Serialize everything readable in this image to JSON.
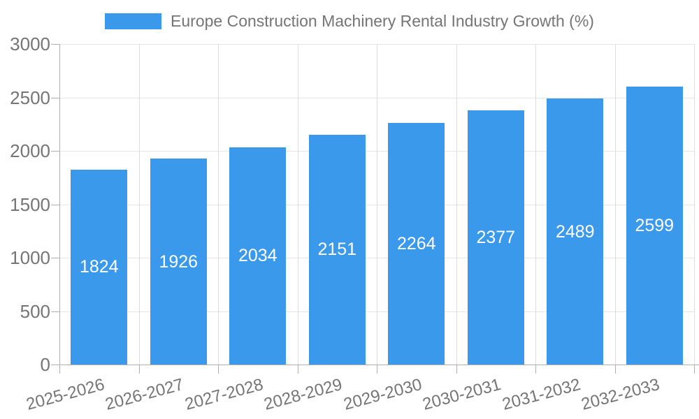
{
  "chart_data": {
    "type": "bar",
    "title": "Europe Construction Machinery Rental Industry Growth (%)",
    "legend_position": "top",
    "categories": [
      "2025-2026",
      "2026-2027",
      "2027-2028",
      "2028-2029",
      "2029-2030",
      "2030-2031",
      "2031-2032",
      "2032-2033"
    ],
    "values": [
      1824,
      1926,
      2034,
      2151,
      2264,
      2377,
      2489,
      2599
    ],
    "xlabel": "",
    "ylabel": "",
    "ylim": [
      0,
      3000
    ],
    "yticks": [
      0,
      500,
      1000,
      1500,
      2000,
      2500,
      3000
    ],
    "grid": true,
    "colors": {
      "bar": "#3b99ec",
      "bar_label": "#ffffff",
      "axis_text": "#757575",
      "grid_horizontal": "#e6e6e6",
      "grid_vertical": "#dcdcdc",
      "axis_line": "#b0b0b0"
    }
  }
}
